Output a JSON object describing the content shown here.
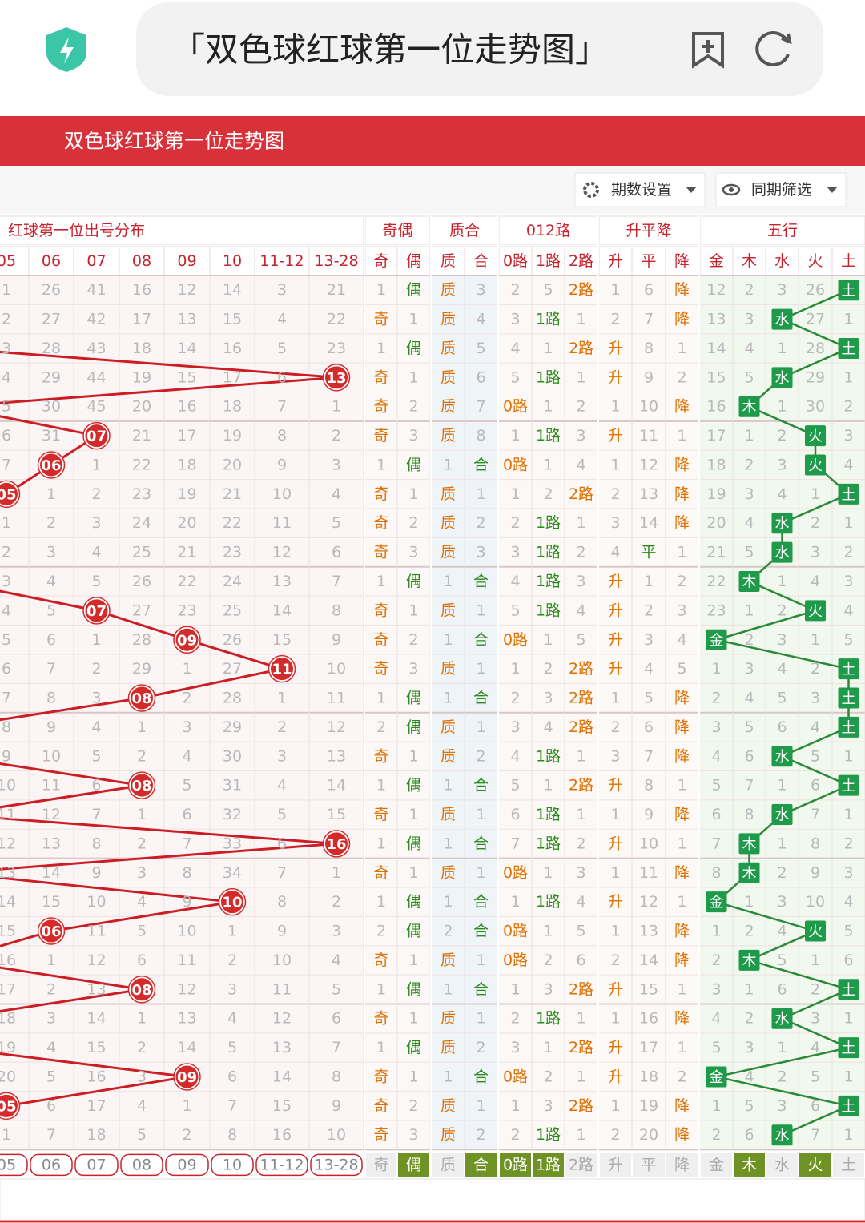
{
  "browser": {
    "title": "「双色球红球第一位走势图」"
  },
  "header": {
    "title": "双色球红球第一位走势图"
  },
  "toolbar": {
    "buttons": [
      "期数设置",
      "同期筛选"
    ]
  },
  "table": {
    "groups": [
      "红球第一位出号分布",
      "奇偶",
      "质合",
      "012路",
      "升平降",
      "五行"
    ],
    "columns": [
      "05",
      "06",
      "07",
      "08",
      "09",
      "10",
      "11-12",
      "13-28",
      "奇",
      "偶",
      "质",
      "合",
      "0路",
      "1路",
      "2路",
      "升",
      "平",
      "降",
      "金",
      "木",
      "水",
      "火",
      "土"
    ],
    "rows": [
      [
        "1",
        "26",
        "41",
        "16",
        "12",
        "14",
        "3",
        "21",
        "1",
        "偶",
        "质",
        "3",
        "2",
        "5",
        "2路",
        "1",
        "6",
        "降",
        "12",
        "2",
        "3",
        "26",
        "土"
      ],
      [
        "2",
        "27",
        "42",
        "17",
        "13",
        "15",
        "4",
        "22",
        "奇",
        "1",
        "质",
        "4",
        "3",
        "1路",
        "1",
        "2",
        "7",
        "降",
        "13",
        "3",
        "水",
        "27",
        "1"
      ],
      [
        "3",
        "28",
        "43",
        "18",
        "14",
        "16",
        "5",
        "23",
        "1",
        "偶",
        "质",
        "5",
        "4",
        "1",
        "2路",
        "升",
        "8",
        "1",
        "14",
        "4",
        "1",
        "28",
        "土"
      ],
      [
        "4",
        "29",
        "44",
        "19",
        "15",
        "17",
        "6",
        {
          "ball": "13"
        },
        "奇",
        "1",
        "质",
        "6",
        "5",
        "1路",
        "1",
        "升",
        "9",
        "2",
        "15",
        "5",
        "水",
        "29",
        "1"
      ],
      [
        "5",
        "30",
        "45",
        "20",
        "16",
        "18",
        "7",
        "1",
        "奇",
        "2",
        "质",
        "7",
        "0路",
        "1",
        "2",
        "1",
        "10",
        "降",
        "16",
        "木",
        "1",
        "30",
        "2"
      ],
      [
        "6",
        "31",
        {
          "ball": "07"
        },
        "21",
        "17",
        "19",
        "8",
        "2",
        "奇",
        "3",
        "质",
        "8",
        "1",
        "1路",
        "3",
        "升",
        "11",
        "1",
        "17",
        "1",
        "2",
        "火",
        "3"
      ],
      [
        "7",
        {
          "ball": "06"
        },
        "1",
        "22",
        "18",
        "20",
        "9",
        "3",
        "1",
        "偶",
        "1",
        "合",
        "0路",
        "1",
        "4",
        "1",
        "12",
        "降",
        "18",
        "2",
        "3",
        "火",
        "4"
      ],
      [
        {
          "ball": "05"
        },
        "1",
        "2",
        "23",
        "19",
        "21",
        "10",
        "4",
        "奇",
        "1",
        "质",
        "1",
        "1",
        "2",
        "2路",
        "2",
        "13",
        "降",
        "19",
        "3",
        "4",
        "1",
        "土"
      ],
      [
        "1",
        "2",
        "3",
        "24",
        "20",
        "22",
        "11",
        "5",
        "奇",
        "2",
        "质",
        "2",
        "2",
        "1路",
        "1",
        "3",
        "14",
        "降",
        "20",
        "4",
        "水",
        "2",
        "1"
      ],
      [
        "2",
        "3",
        "4",
        "25",
        "21",
        "23",
        "12",
        "6",
        "奇",
        "3",
        "质",
        "3",
        "3",
        "1路",
        "2",
        "4",
        "平",
        "1",
        "21",
        "5",
        "水",
        "3",
        "2"
      ],
      [
        "3",
        "4",
        "5",
        "26",
        "22",
        "24",
        "13",
        "7",
        "1",
        "偶",
        "1",
        "合",
        "4",
        "1路",
        "3",
        "升",
        "1",
        "2",
        "22",
        "木",
        "1",
        "4",
        "3"
      ],
      [
        "4",
        "5",
        {
          "ball": "07"
        },
        "27",
        "23",
        "25",
        "14",
        "8",
        "奇",
        "1",
        "质",
        "1",
        "5",
        "1路",
        "4",
        "升",
        "2",
        "3",
        "23",
        "1",
        "2",
        "火",
        "4"
      ],
      [
        "5",
        "6",
        "1",
        "28",
        {
          "ball": "09"
        },
        "26",
        "15",
        "9",
        "奇",
        "2",
        "1",
        "合",
        "0路",
        "1",
        "5",
        "升",
        "3",
        "4",
        "金",
        "2",
        "3",
        "1",
        "5"
      ],
      [
        "6",
        "7",
        "2",
        "29",
        "1",
        "27",
        {
          "ball": "11"
        },
        "10",
        "奇",
        "3",
        "质",
        "1",
        "1",
        "2",
        "2路",
        "升",
        "4",
        "5",
        "1",
        "3",
        "4",
        "2",
        "土"
      ],
      [
        "7",
        "8",
        "3",
        {
          "ball": "08"
        },
        "2",
        "28",
        "1",
        "11",
        "1",
        "偶",
        "1",
        "合",
        "2",
        "3",
        "2路",
        "1",
        "5",
        "降",
        "2",
        "4",
        "5",
        "3",
        "土"
      ],
      [
        "8",
        "9",
        "4",
        "1",
        "3",
        "29",
        "2",
        "12",
        "2",
        "偶",
        "质",
        "1",
        "3",
        "4",
        "2路",
        "2",
        "6",
        "降",
        "3",
        "5",
        "6",
        "4",
        "土"
      ],
      [
        "9",
        "10",
        "5",
        "2",
        "4",
        "30",
        "3",
        "13",
        "奇",
        "1",
        "质",
        "2",
        "4",
        "1路",
        "1",
        "3",
        "7",
        "降",
        "4",
        "6",
        "水",
        "5",
        "1"
      ],
      [
        "10",
        "11",
        "6",
        {
          "ball": "08"
        },
        "5",
        "31",
        "4",
        "14",
        "1",
        "偶",
        "1",
        "合",
        "5",
        "1",
        "2路",
        "升",
        "8",
        "1",
        "5",
        "7",
        "1",
        "6",
        "土"
      ],
      [
        "11",
        "12",
        "7",
        "1",
        "6",
        "32",
        "5",
        "15",
        "奇",
        "1",
        "质",
        "1",
        "6",
        "1路",
        "1",
        "1",
        "9",
        "降",
        "6",
        "8",
        "水",
        "7",
        "1"
      ],
      [
        "12",
        "13",
        "8",
        "2",
        "7",
        "33",
        "6",
        {
          "ball": "16"
        },
        "1",
        "偶",
        "1",
        "合",
        "7",
        "1路",
        "2",
        "升",
        "10",
        "1",
        "7",
        "木",
        "1",
        "8",
        "2"
      ],
      [
        "13",
        "14",
        "9",
        "3",
        "8",
        "34",
        "7",
        "1",
        "奇",
        "1",
        "质",
        "1",
        "0路",
        "1",
        "3",
        "1",
        "11",
        "降",
        "8",
        "木",
        "2",
        "9",
        "3"
      ],
      [
        "14",
        "15",
        "10",
        "4",
        "9",
        {
          "ball": "10"
        },
        "8",
        "2",
        "1",
        "偶",
        "1",
        "合",
        "1",
        "1路",
        "4",
        "升",
        "12",
        "1",
        "金",
        "1",
        "3",
        "10",
        "4"
      ],
      [
        "15",
        {
          "ball": "06"
        },
        "11",
        "5",
        "10",
        "1",
        "9",
        "3",
        "2",
        "偶",
        "2",
        "合",
        "0路",
        "1",
        "5",
        "1",
        "13",
        "降",
        "1",
        "2",
        "4",
        "火",
        "5"
      ],
      [
        "16",
        "1",
        "12",
        "6",
        "11",
        "2",
        "10",
        "4",
        "奇",
        "1",
        "质",
        "1",
        "0路",
        "2",
        "6",
        "2",
        "14",
        "降",
        "2",
        "木",
        "5",
        "1",
        "6"
      ],
      [
        "17",
        "2",
        "13",
        {
          "ball": "08"
        },
        "12",
        "3",
        "11",
        "5",
        "1",
        "偶",
        "1",
        "合",
        "1",
        "3",
        "2路",
        "升",
        "15",
        "1",
        "3",
        "1",
        "6",
        "2",
        "土"
      ],
      [
        "18",
        "3",
        "14",
        "1",
        "13",
        "4",
        "12",
        "6",
        "奇",
        "1",
        "质",
        "1",
        "2",
        "1路",
        "1",
        "1",
        "16",
        "降",
        "4",
        "2",
        "水",
        "3",
        "1"
      ],
      [
        "19",
        "4",
        "15",
        "2",
        "14",
        "5",
        "13",
        "7",
        "1",
        "偶",
        "质",
        "2",
        "3",
        "1",
        "2路",
        "升",
        "17",
        "1",
        "5",
        "3",
        "1",
        "4",
        "土"
      ],
      [
        "20",
        "5",
        "16",
        "3",
        {
          "ball": "09"
        },
        "6",
        "14",
        "8",
        "奇",
        "1",
        "1",
        "合",
        "0路",
        "2",
        "1",
        "升",
        "18",
        "2",
        "金",
        "4",
        "2",
        "5",
        "1"
      ],
      [
        {
          "ball": "05"
        },
        "6",
        "17",
        "4",
        "1",
        "7",
        "15",
        "9",
        "奇",
        "2",
        "质",
        "1",
        "1",
        "3",
        "2路",
        "1",
        "19",
        "降",
        "1",
        "5",
        "3",
        "6",
        "土"
      ],
      [
        "1",
        "7",
        "18",
        "5",
        "2",
        "8",
        "16",
        "10",
        "奇",
        "3",
        "质",
        "2",
        "2",
        "1路",
        "1",
        "2",
        "20",
        "降",
        "2",
        "6",
        "水",
        "7",
        "1"
      ]
    ],
    "footer": [
      "05",
      "06",
      "07",
      "08",
      "09",
      "10",
      "11-12",
      "13-28",
      "奇",
      {
        "text": "偶",
        "active": true
      },
      "质",
      {
        "text": "合",
        "active": true
      },
      {
        "text": "0路",
        "active": true
      },
      {
        "text": "1路",
        "active": true
      },
      "2路",
      "升",
      "平",
      "降",
      "金",
      {
        "text": "木",
        "active": true
      },
      "水",
      {
        "text": "火",
        "active": true
      },
      "土"
    ]
  }
}
